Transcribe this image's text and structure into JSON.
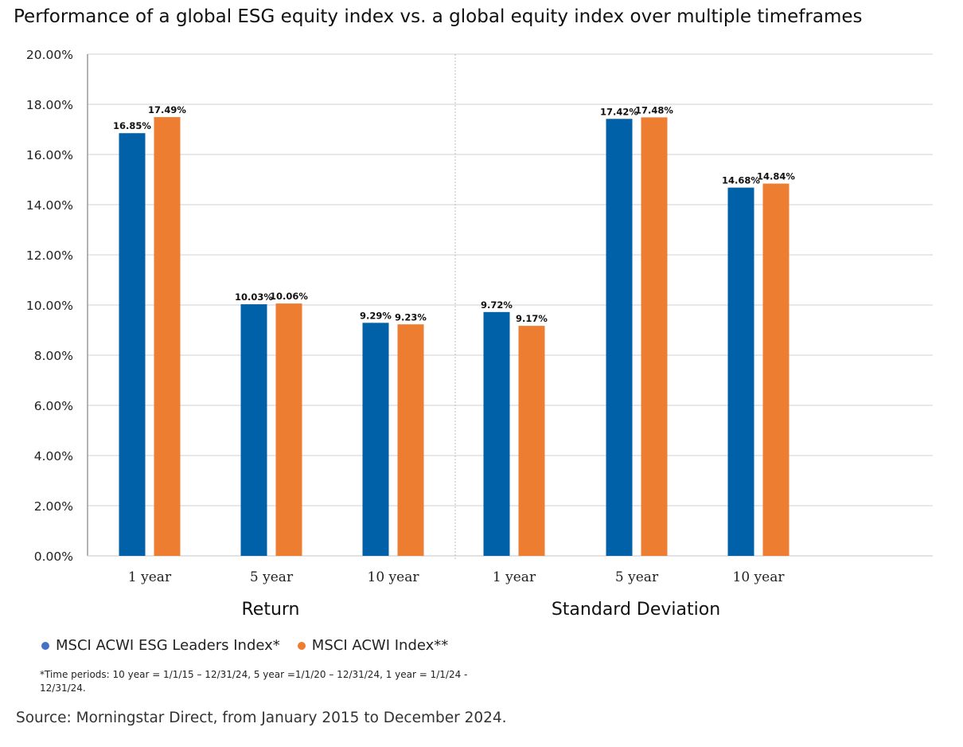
{
  "title": "Performance of a global ESG equity index vs. a global equity index over multiple timeframes",
  "chart_data": {
    "type": "bar",
    "title": "Performance of a global ESG equity index vs. a global equity index over multiple timeframes",
    "groups": [
      {
        "name": "Return",
        "categories": [
          "1 year",
          "5 year",
          "10 year"
        ]
      },
      {
        "name": "Standard Deviation",
        "categories": [
          "1 year",
          "5 year",
          "10 year"
        ]
      }
    ],
    "categories": [
      "1 year",
      "5 year",
      "10 year",
      "1 year",
      "5 year",
      "10 year"
    ],
    "series": [
      {
        "name": "MSCI ACWI ESG Leaders Index*",
        "color": "#0060A8",
        "values": [
          16.85,
          10.03,
          9.29,
          9.72,
          17.42,
          14.68
        ],
        "labels": [
          "16.85%",
          "10.03%",
          "9.29%",
          "9.72%",
          "17.42%",
          "14.68%"
        ]
      },
      {
        "name": "MSCI ACWI Index**",
        "color": "#ED7D31",
        "values": [
          17.49,
          10.06,
          9.23,
          9.17,
          17.48,
          14.84
        ],
        "labels": [
          "17.49%",
          "10.06%",
          "9.23%",
          "9.17%",
          "17.48%",
          "14.84%"
        ]
      }
    ],
    "ylim": [
      0,
      20
    ],
    "yticks": [
      "0.00%",
      "2.00%",
      "4.00%",
      "6.00%",
      "8.00%",
      "10.00%",
      "12.00%",
      "14.00%",
      "16.00%",
      "18.00%",
      "20.00%"
    ],
    "xlabel": "",
    "ylabel": "",
    "grid": true,
    "legend_position": "bottom-left"
  },
  "legend": {
    "esg_label": "MSCI ACWI ESG Leaders Index*",
    "esg_color": "#4472C4",
    "acwi_label": "MSCI ACWI Index**",
    "acwi_color": "#ED7D31"
  },
  "footnote": "*Time periods: 10 year = 1/1/15 – 12/31/24, 5 year =1/1/20 – 12/31/24, 1 year = 1/1/24 - 12/31/24.",
  "source": "Source: Morningstar Direct, from January 2015 to December 2024."
}
